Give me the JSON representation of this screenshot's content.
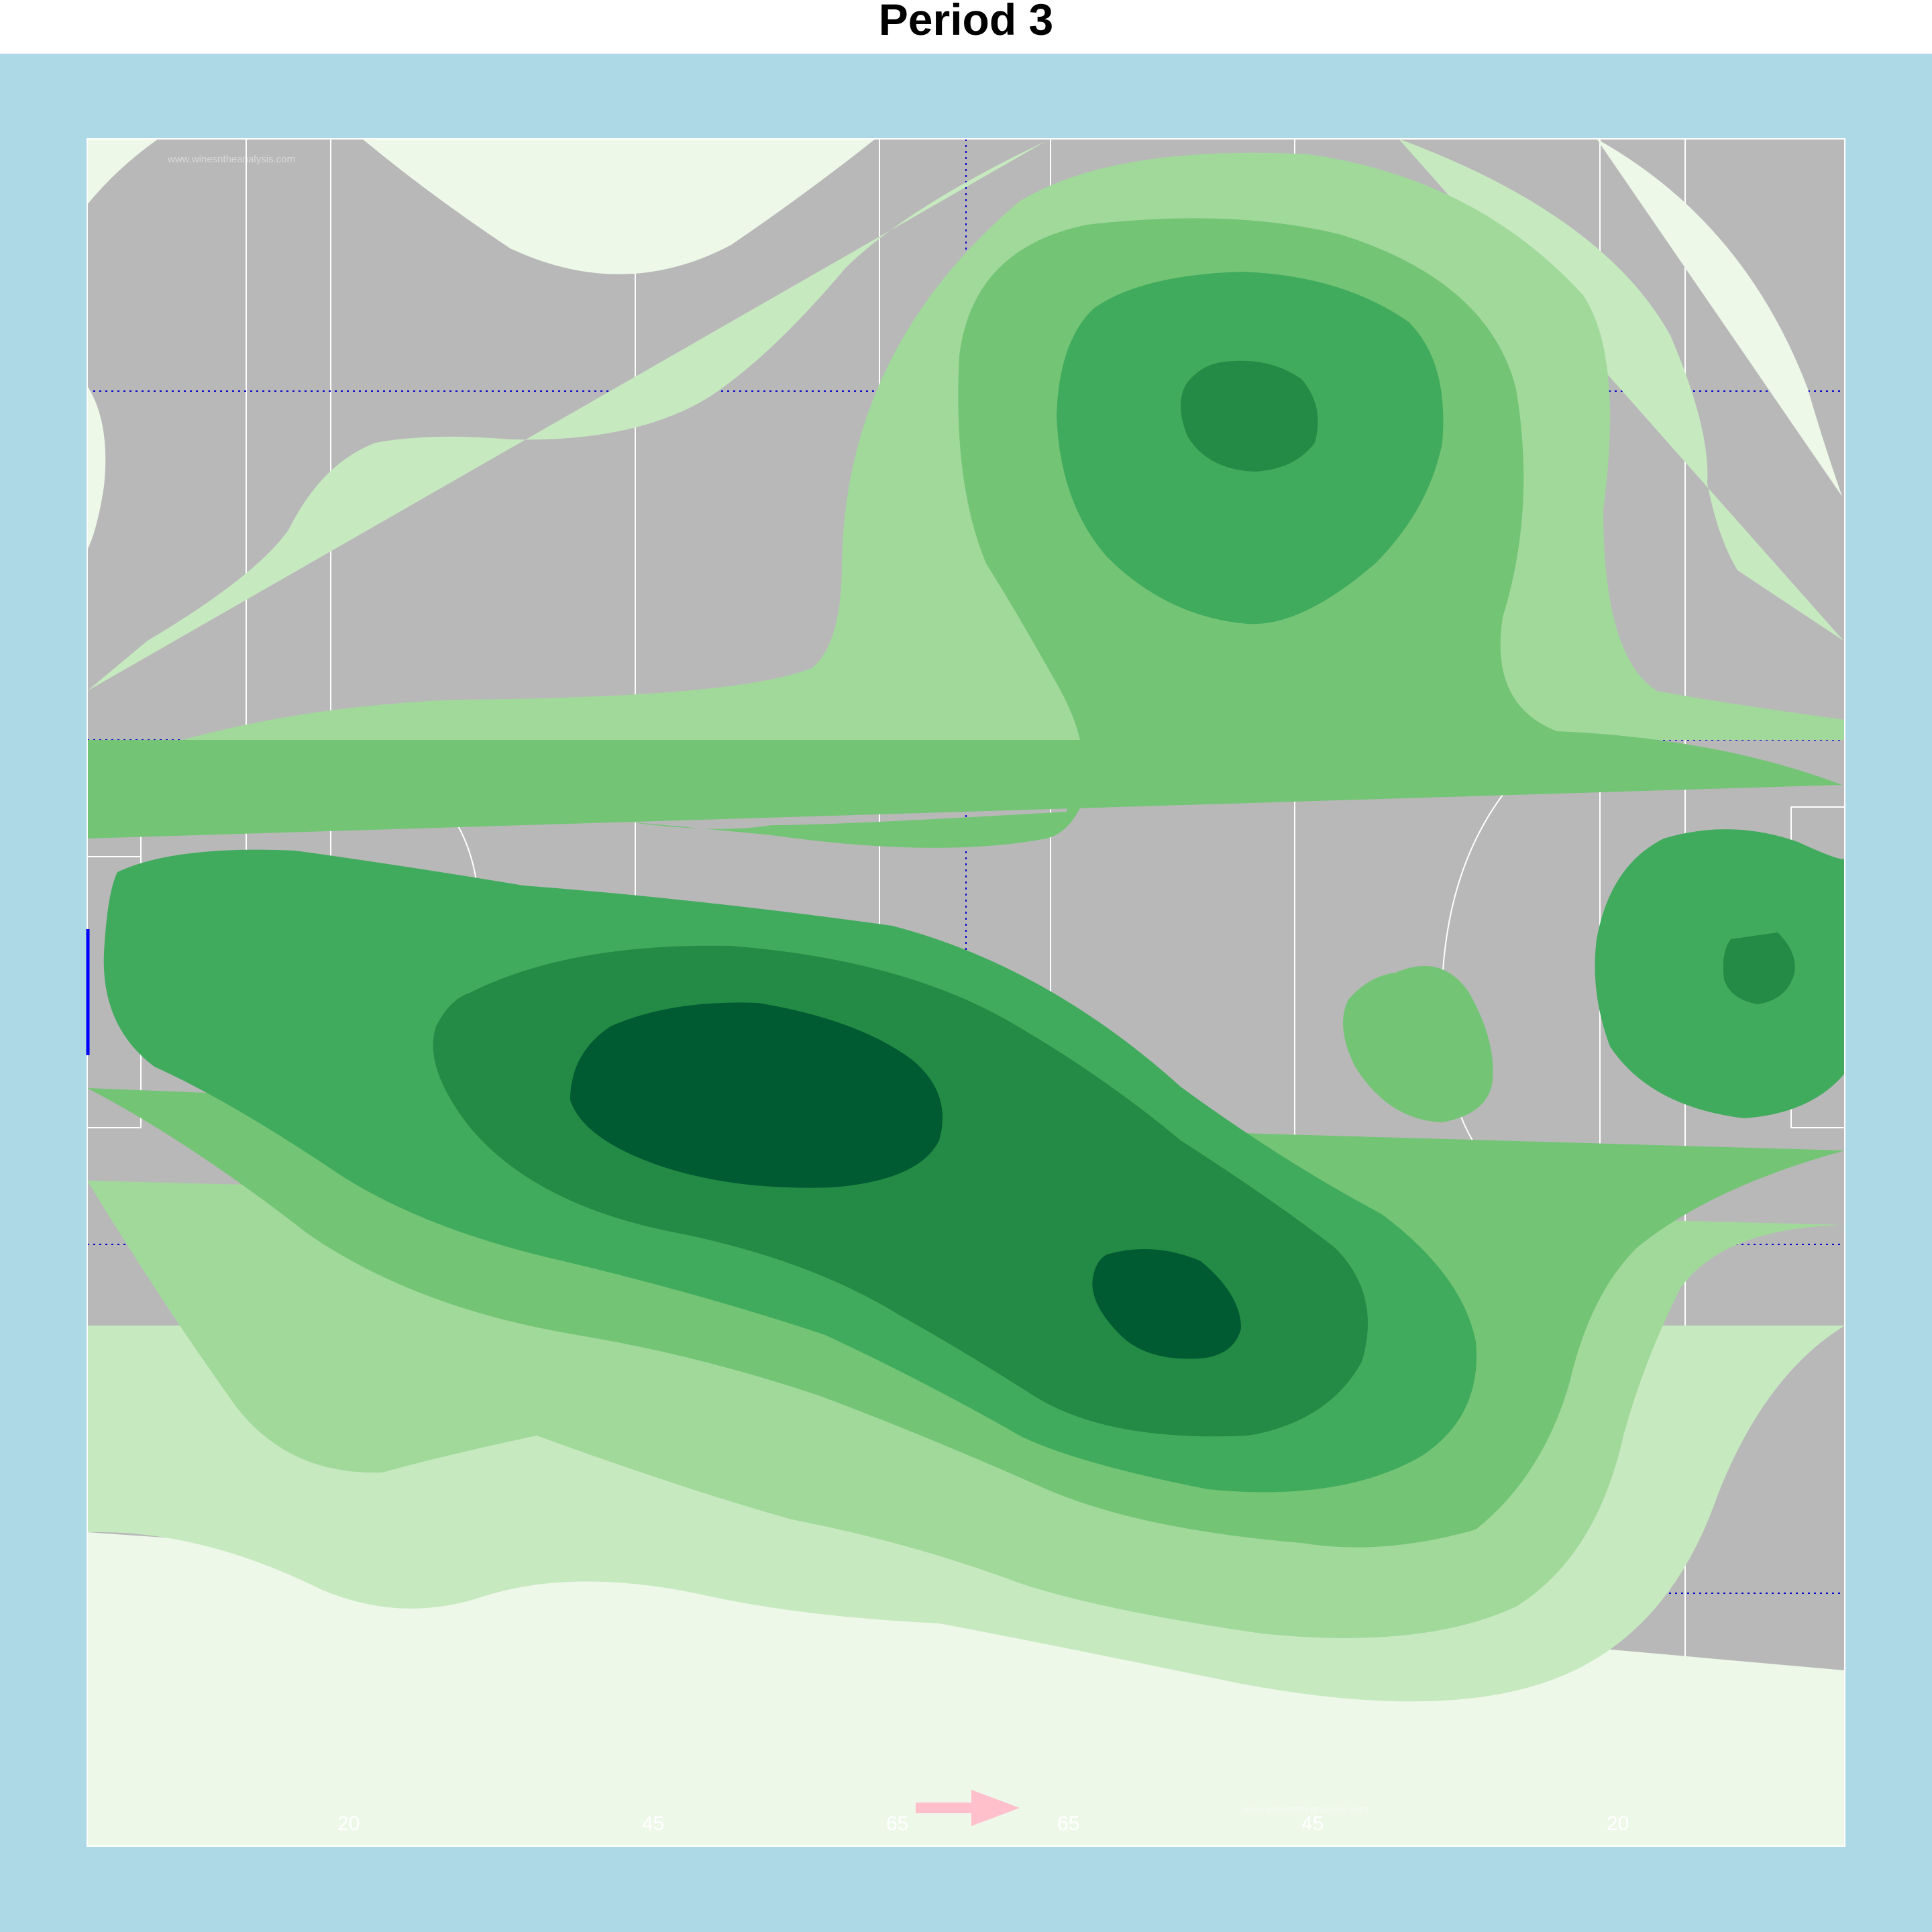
{
  "chart_data": {
    "type": "heatmap",
    "title": "Period 3",
    "subtitle": "",
    "xlabel": "",
    "ylabel": "",
    "field": {
      "yard_labels": [
        "20",
        "45",
        "65",
        "65",
        "45",
        "20"
      ],
      "watermark": "www.winesntheanalysis.com",
      "attack_direction": "right"
    },
    "density_levels": 6,
    "legend": "none",
    "grid": false,
    "colors": {
      "frame": "#add8e6",
      "pitch": "#b8b8b8",
      "line": "#ffffff",
      "guide": "#0000cc",
      "arrow": "#ffc0cb",
      "goal_left": "#0000ff",
      "level1": "#edf8e9",
      "level2": "#c7e9c0",
      "level3": "#a1d99b",
      "level4": "#74c476",
      "level5": "#41ab5d",
      "level6": "#238b45",
      "level7": "#005a32"
    }
  }
}
